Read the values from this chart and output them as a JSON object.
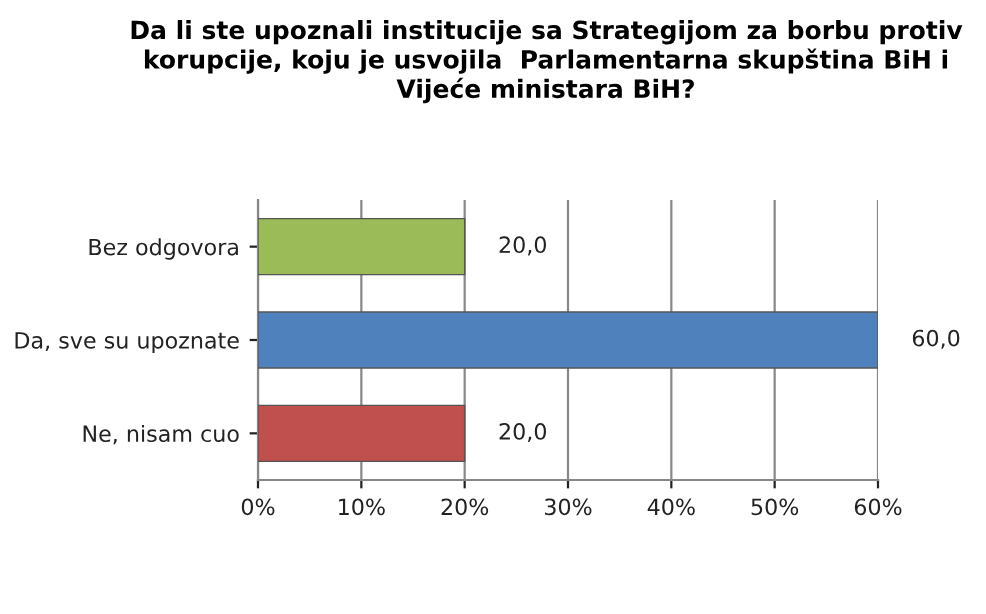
{
  "chart_data": {
    "type": "bar",
    "orientation": "horizontal",
    "title": "Da li ste upoznali institucije sa Strategijom za borbu protiv korupcije, koju je usvojila  Parlamentarna skupština BiH i Vijeće ministara BiH?",
    "categories": [
      "Bez odgovora",
      "Da, sve su upoznate",
      "Ne, nisam cuo"
    ],
    "values": [
      20,
      60,
      20
    ],
    "colors": [
      "#9bbb59",
      "#4f81bd",
      "#c0504d"
    ],
    "value_labels": [
      "20,0",
      "60,0",
      "20,0"
    ],
    "xlim": [
      0,
      60
    ],
    "xticks": [
      {
        "value": 0,
        "label": "0%"
      },
      {
        "value": 10,
        "label": "10%"
      },
      {
        "value": 20,
        "label": "20%"
      },
      {
        "value": 30,
        "label": "30%"
      },
      {
        "value": 40,
        "label": "40%"
      },
      {
        "value": 50,
        "label": "50%"
      },
      {
        "value": 60,
        "label": "60%"
      }
    ],
    "grid": "x",
    "legend": false
  }
}
